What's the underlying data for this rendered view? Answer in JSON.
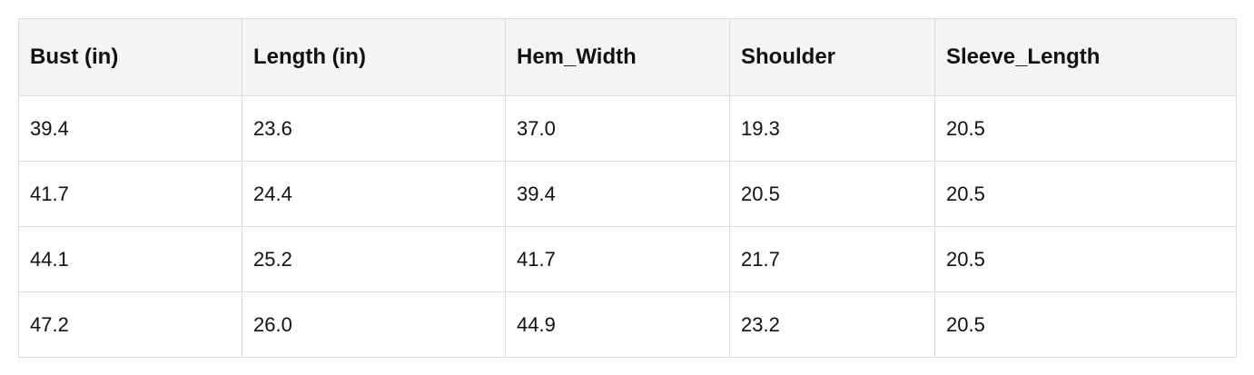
{
  "table": {
    "header": [
      "Bust (in)",
      "Length (in)",
      "Hem_Width",
      "Shoulder",
      "Sleeve_Length"
    ],
    "rows": [
      [
        "39.4",
        "23.6",
        "37.0",
        "19.3",
        "20.5"
      ],
      [
        "41.7",
        "24.4",
        "39.4",
        "20.5",
        "20.5"
      ],
      [
        "44.1",
        "25.2",
        "41.7",
        "21.7",
        "20.5"
      ],
      [
        "47.2",
        "26.0",
        "44.9",
        "23.2",
        "20.5"
      ]
    ]
  }
}
